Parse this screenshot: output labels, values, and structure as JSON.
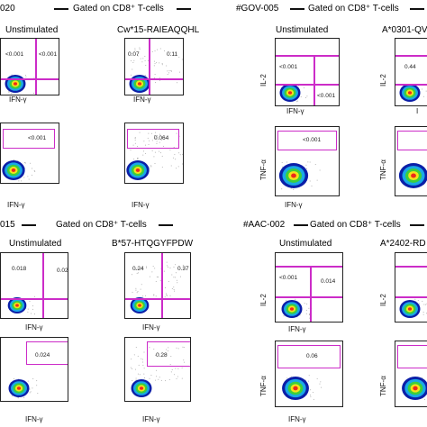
{
  "panels": [
    {
      "id": "020",
      "patient_label": "020",
      "gated_label": "Gated on CD8⁺ T-cells",
      "col1_title": "Unstimulated",
      "col2_title": "Cw*15-RAIEAQQHL",
      "plots": [
        {
          "quad": true,
          "values": [
            "<0.001",
            "<0.001"
          ],
          "x_label": "IFN-γ",
          "y_label": ""
        },
        {
          "quad": true,
          "values": [
            "0.07",
            "0.11"
          ],
          "x_label": "IFN-γ",
          "y_label": ""
        },
        {
          "quad": false,
          "values": [
            "<0.001"
          ],
          "x_label": "IFN-γ",
          "y_label": ""
        },
        {
          "quad": false,
          "values": [
            "0.064"
          ],
          "x_label": "IFN-γ",
          "y_label": ""
        }
      ]
    },
    {
      "id": "GOV-005",
      "patient_label": "#GOV-005",
      "gated_label": "Gated on CD8⁺ T-cells",
      "col1_title": "Unstimulated",
      "col2_title": "A*0301-QV",
      "plots": [
        {
          "quad": true,
          "values": [
            "<0.001",
            "<0.001"
          ],
          "x_label": "IFN-γ",
          "y_label": "IL-2"
        },
        {
          "quad": true,
          "values": [
            "0.44",
            ""
          ],
          "x_label": "I",
          "y_label": "IL-2"
        },
        {
          "quad": false,
          "values": [
            "<0.001"
          ],
          "x_label": "IFN-γ",
          "y_label": "TNF-α"
        },
        {
          "quad": false,
          "values": [
            ""
          ],
          "x_label": "",
          "y_label": "TNF-α"
        }
      ]
    },
    {
      "id": "015",
      "patient_label": "015",
      "gated_label": "Gated on CD8⁺ T-cells",
      "col1_title": "Unstimulated",
      "col2_title": "B*57-HTQGYFPDW",
      "plots": [
        {
          "quad": true,
          "values": [
            "0.018",
            "0.02"
          ],
          "x_label": "IFN-γ",
          "y_label": ""
        },
        {
          "quad": true,
          "values": [
            "0.24",
            "0.37"
          ],
          "x_label": "IFN-γ",
          "y_label": ""
        },
        {
          "quad": false,
          "values": [
            "0.024"
          ],
          "x_label": "IFN-γ",
          "y_label": ""
        },
        {
          "quad": false,
          "values": [
            "0.28"
          ],
          "x_label": "IFN-γ",
          "y_label": ""
        }
      ]
    },
    {
      "id": "AAC-002",
      "patient_label": "#AAC-002",
      "gated_label": "Gated on CD8⁺ T-cells",
      "col1_title": "Unstimulated",
      "col2_title": "A*2402-RD",
      "plots": [
        {
          "quad": true,
          "values": [
            "<0.001",
            "0.014"
          ],
          "x_label": "IFN-γ",
          "y_label": "IL-2"
        },
        {
          "quad": true,
          "values": [
            "",
            ""
          ],
          "x_label": "",
          "y_label": "IL-2"
        },
        {
          "quad": false,
          "values": [
            "0.06"
          ],
          "x_label": "IFN-γ",
          "y_label": "TNF-α"
        },
        {
          "quad": false,
          "values": [
            ""
          ],
          "x_label": "",
          "y_label": "TNF-α"
        }
      ]
    }
  ],
  "colors": {
    "gate": "#cc2cc8",
    "text": "#000000",
    "density": [
      "#0b1fa8",
      "#1aa8e6",
      "#3ccf3c",
      "#f3e21a",
      "#ee2a1a"
    ]
  }
}
